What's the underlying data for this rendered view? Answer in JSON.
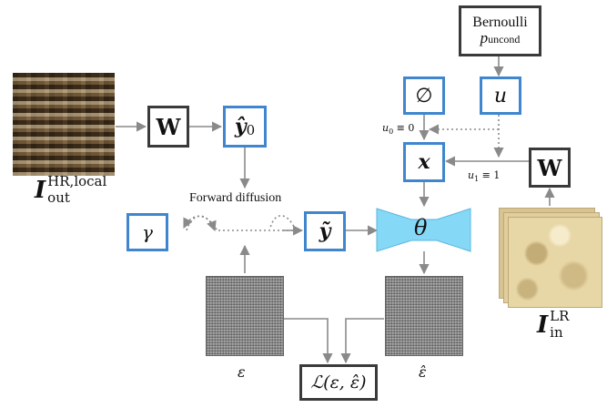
{
  "nodes": {
    "bernoulli": {
      "line1": "Bernoulli",
      "line2": "p",
      "sub": "uncond"
    },
    "empty_set": "∅",
    "u": "u",
    "x": "x",
    "W_top": "W",
    "W_right": "W",
    "y0_hat": {
      "base": "ŷ",
      "sub": "0"
    },
    "y_tilde": "ỹ",
    "gamma": "γ",
    "theta": "θ",
    "loss": "ℒ(ε, ε̂)"
  },
  "labels": {
    "forward_diffusion": "Forward diffusion",
    "u0": {
      "base": "u",
      "sub": "0",
      "rest": " ≡ 0"
    },
    "u1": {
      "base": "u",
      "sub": "1",
      "rest": " ≡ 1"
    },
    "epsilon": "ε",
    "epsilon_hat": "ε̂",
    "i_out": {
      "base": "I",
      "sup": "HR,local",
      "sub": "out"
    },
    "i_in": {
      "base": "I",
      "sup": "LR",
      "sub": "in"
    }
  },
  "colors": {
    "blue_border": "#3f86cf",
    "dark_border": "#3a3a3a",
    "theta_fill": "#86d8f7",
    "arrow": "#8a8a8a"
  }
}
